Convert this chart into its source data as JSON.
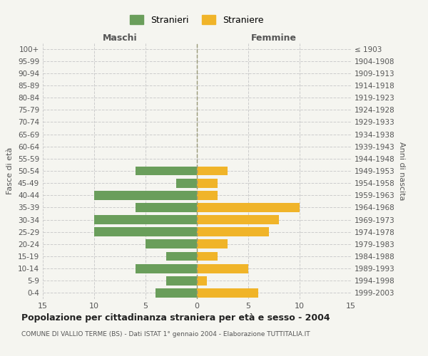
{
  "age_groups": [
    "0-4",
    "5-9",
    "10-14",
    "15-19",
    "20-24",
    "25-29",
    "30-34",
    "35-39",
    "40-44",
    "45-49",
    "50-54",
    "55-59",
    "60-64",
    "65-69",
    "70-74",
    "75-79",
    "80-84",
    "85-89",
    "90-94",
    "95-99",
    "100+"
  ],
  "birth_years": [
    "1999-2003",
    "1994-1998",
    "1989-1993",
    "1984-1988",
    "1979-1983",
    "1974-1978",
    "1969-1973",
    "1964-1968",
    "1959-1963",
    "1954-1958",
    "1949-1953",
    "1944-1948",
    "1939-1943",
    "1934-1938",
    "1929-1933",
    "1924-1928",
    "1919-1923",
    "1914-1918",
    "1909-1913",
    "1904-1908",
    "≤ 1903"
  ],
  "maschi": [
    4,
    3,
    6,
    3,
    5,
    10,
    10,
    6,
    10,
    2,
    6,
    0,
    0,
    0,
    0,
    0,
    0,
    0,
    0,
    0,
    0
  ],
  "femmine": [
    6,
    1,
    5,
    2,
    3,
    7,
    8,
    10,
    2,
    2,
    3,
    0,
    0,
    0,
    0,
    0,
    0,
    0,
    0,
    0,
    0
  ],
  "color_maschi": "#6a9e5b",
  "color_femmine": "#f0b429",
  "bg_color": "#f5f5f0",
  "grid_color": "#cccccc",
  "title": "Popolazione per cittadinanza straniera per età e sesso - 2004",
  "subtitle": "COMUNE DI VALLIO TERME (BS) - Dati ISTAT 1° gennaio 2004 - Elaborazione TUTTITALIA.IT",
  "xlabel_left": "Maschi",
  "xlabel_right": "Femmine",
  "ylabel_left": "Fasce di età",
  "ylabel_right": "Anni di nascita",
  "legend_stranieri": "Stranieri",
  "legend_straniere": "Straniere",
  "xlim": 15,
  "bar_height": 0.75
}
